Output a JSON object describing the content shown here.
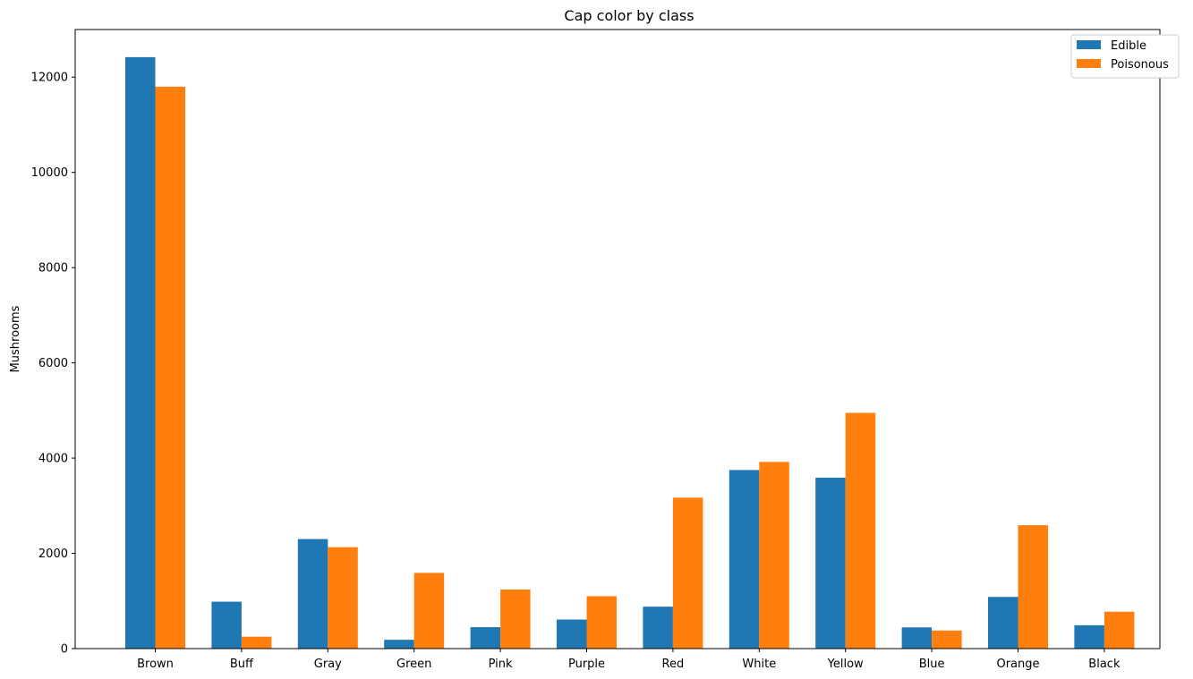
{
  "chart_data": {
    "type": "bar",
    "title": "Cap color by class",
    "xlabel": "",
    "ylabel": "Mushrooms",
    "categories": [
      "Brown",
      "Buff",
      "Gray",
      "Green",
      "Pink",
      "Purple",
      "Red",
      "White",
      "Yellow",
      "Blue",
      "Orange",
      "Black"
    ],
    "series": [
      {
        "name": "Edible",
        "color": "#1f77b4",
        "values": [
          12420,
          985,
          2300,
          185,
          450,
          610,
          880,
          3750,
          3590,
          445,
          1085,
          490
        ]
      },
      {
        "name": "Poisonous",
        "color": "#ff7f0e",
        "values": [
          11800,
          250,
          2130,
          1590,
          1240,
          1100,
          3170,
          3920,
          4950,
          380,
          2590,
          775
        ]
      }
    ],
    "ylim": [
      0,
      13000
    ],
    "yticks": [
      0,
      2000,
      4000,
      6000,
      8000,
      10000,
      12000
    ],
    "grid": false,
    "legend_position": "top-right"
  }
}
